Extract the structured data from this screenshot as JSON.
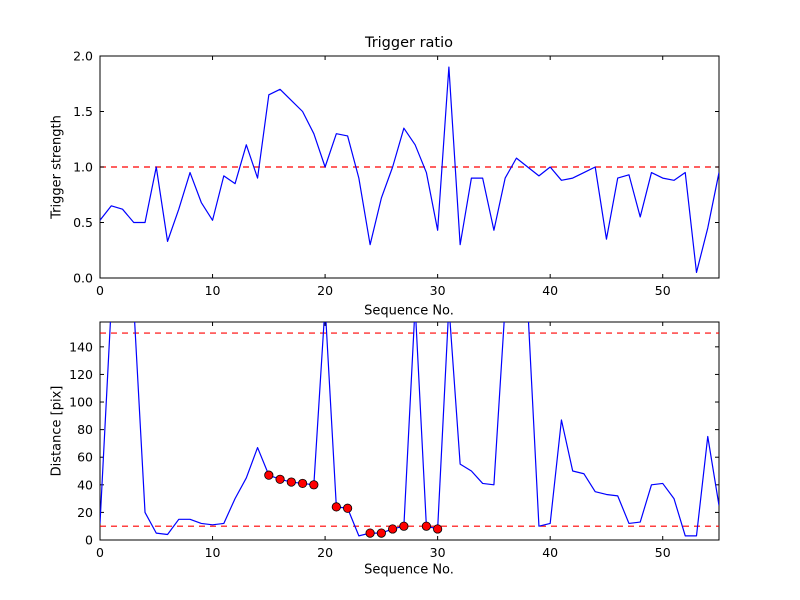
{
  "figure": {
    "background": "#ffffff",
    "line_color": "#0000ff",
    "dashed_color": "#ff0000",
    "marker_fill": "#ff0000",
    "marker_edge": "#000000",
    "axis_color": "#000000"
  },
  "chart_data": [
    {
      "type": "line",
      "title": "Trigger ratio",
      "xlabel": "Sequence No.",
      "ylabel": "Trigger strength",
      "xlim": [
        0,
        55
      ],
      "ylim": [
        0.0,
        2.0
      ],
      "xticks": {
        "values": [
          0,
          10,
          20,
          30,
          40,
          50
        ],
        "labels": [
          "0",
          "10",
          "20",
          "30",
          "40",
          "50"
        ]
      },
      "yticks": {
        "values": [
          0.0,
          0.5,
          1.0,
          1.5,
          2.0
        ],
        "labels": [
          "0.0",
          "0.5",
          "1.0",
          "1.5",
          "2.0"
        ]
      },
      "hlines": [
        1.0
      ],
      "x": [
        0,
        1,
        2,
        3,
        4,
        5,
        6,
        7,
        8,
        9,
        10,
        11,
        12,
        13,
        14,
        15,
        16,
        17,
        18,
        19,
        20,
        21,
        22,
        23,
        24,
        25,
        26,
        27,
        28,
        29,
        30,
        31,
        32,
        33,
        34,
        35,
        36,
        37,
        38,
        39,
        40,
        41,
        42,
        43,
        44,
        45,
        46,
        47,
        48,
        49,
        50,
        51,
        52,
        53,
        54,
        55
      ],
      "values": [
        0.52,
        0.65,
        0.62,
        0.5,
        0.5,
        1.0,
        0.33,
        0.62,
        0.95,
        0.68,
        0.52,
        0.92,
        0.85,
        1.2,
        0.9,
        1.65,
        1.7,
        1.6,
        1.5,
        1.3,
        1.0,
        1.3,
        1.28,
        0.9,
        0.3,
        0.72,
        1.0,
        1.35,
        1.2,
        0.95,
        0.43,
        1.9,
        0.3,
        0.9,
        0.9,
        0.43,
        0.9,
        1.08,
        1.0,
        0.92,
        1.0,
        0.88,
        0.9,
        0.95,
        1.0,
        0.35,
        0.9,
        0.93,
        0.55,
        0.95,
        0.9,
        0.88,
        0.95,
        0.05,
        0.45,
        0.95
      ],
      "markers": [],
      "grid": false,
      "legend": null
    },
    {
      "type": "line",
      "title": "",
      "xlabel": "Sequence No.",
      "ylabel": "Distance [pix]",
      "xlim": [
        0,
        55
      ],
      "ylim": [
        0,
        158
      ],
      "xticks": {
        "values": [
          0,
          10,
          20,
          30,
          40,
          50
        ],
        "labels": [
          "0",
          "10",
          "20",
          "30",
          "40",
          "50"
        ]
      },
      "yticks": {
        "values": [
          0,
          20,
          40,
          60,
          80,
          100,
          120,
          140
        ],
        "labels": [
          "0",
          "20",
          "40",
          "60",
          "80",
          "100",
          "120",
          "140"
        ]
      },
      "hlines": [
        150,
        10
      ],
      "x": [
        0,
        1,
        2,
        3,
        4,
        5,
        6,
        7,
        8,
        9,
        10,
        11,
        12,
        13,
        14,
        15,
        16,
        17,
        18,
        19,
        20,
        21,
        22,
        23,
        24,
        25,
        26,
        27,
        28,
        29,
        30,
        31,
        32,
        33,
        34,
        35,
        36,
        37,
        38,
        39,
        40,
        41,
        42,
        43,
        44,
        45,
        46,
        47,
        48,
        49,
        50,
        51,
        52,
        53,
        54,
        55
      ],
      "values": [
        12,
        170,
        170,
        170,
        20,
        5,
        4,
        15,
        15,
        12,
        11,
        12,
        30,
        45,
        67,
        47,
        44,
        42,
        41,
        40,
        170,
        24,
        23,
        3,
        5,
        5,
        8,
        10,
        170,
        10,
        8,
        170,
        55,
        50,
        41,
        40,
        170,
        170,
        170,
        10,
        12,
        87,
        50,
        48,
        35,
        33,
        32,
        12,
        13,
        40,
        41,
        30,
        3,
        3,
        75,
        25
      ],
      "markers": [
        [
          15,
          47
        ],
        [
          16,
          44
        ],
        [
          17,
          42
        ],
        [
          18,
          41
        ],
        [
          19,
          40
        ],
        [
          21,
          24
        ],
        [
          22,
          23
        ],
        [
          24,
          5
        ],
        [
          25,
          5
        ],
        [
          26,
          8
        ],
        [
          27,
          10
        ],
        [
          29,
          10
        ],
        [
          30,
          8
        ]
      ],
      "grid": false,
      "legend": null
    }
  ]
}
